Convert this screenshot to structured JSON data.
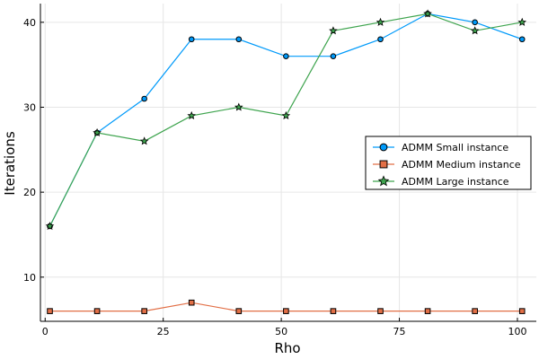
{
  "chart_data": {
    "type": "line",
    "title": "",
    "xlabel": "Rho",
    "ylabel": "Iterations",
    "xlim": [
      -1,
      104
    ],
    "ylim": [
      4.8,
      42.2
    ],
    "xticks": [
      0,
      25,
      50,
      75,
      100
    ],
    "yticks": [
      10,
      20,
      30,
      40
    ],
    "grid": true,
    "legend_position": "right",
    "x": [
      1,
      11,
      21,
      31,
      41,
      51,
      61,
      71,
      81,
      91,
      101
    ],
    "series": [
      {
        "name": "ADMM Small instance",
        "color": "#009AFA",
        "marker": "circle",
        "values": [
          16,
          27,
          31,
          38,
          38,
          36,
          36,
          38,
          41,
          40,
          38
        ]
      },
      {
        "name": "ADMM Medium instance",
        "color": "#E26F46",
        "marker": "square",
        "values": [
          6,
          6,
          6,
          7,
          6,
          6,
          6,
          6,
          6,
          6,
          6
        ]
      },
      {
        "name": "ADMM Large instance",
        "color": "#3EA44E",
        "marker": "star",
        "values": [
          16,
          27,
          26,
          29,
          30,
          29,
          39,
          40,
          41,
          39,
          40
        ]
      }
    ]
  }
}
